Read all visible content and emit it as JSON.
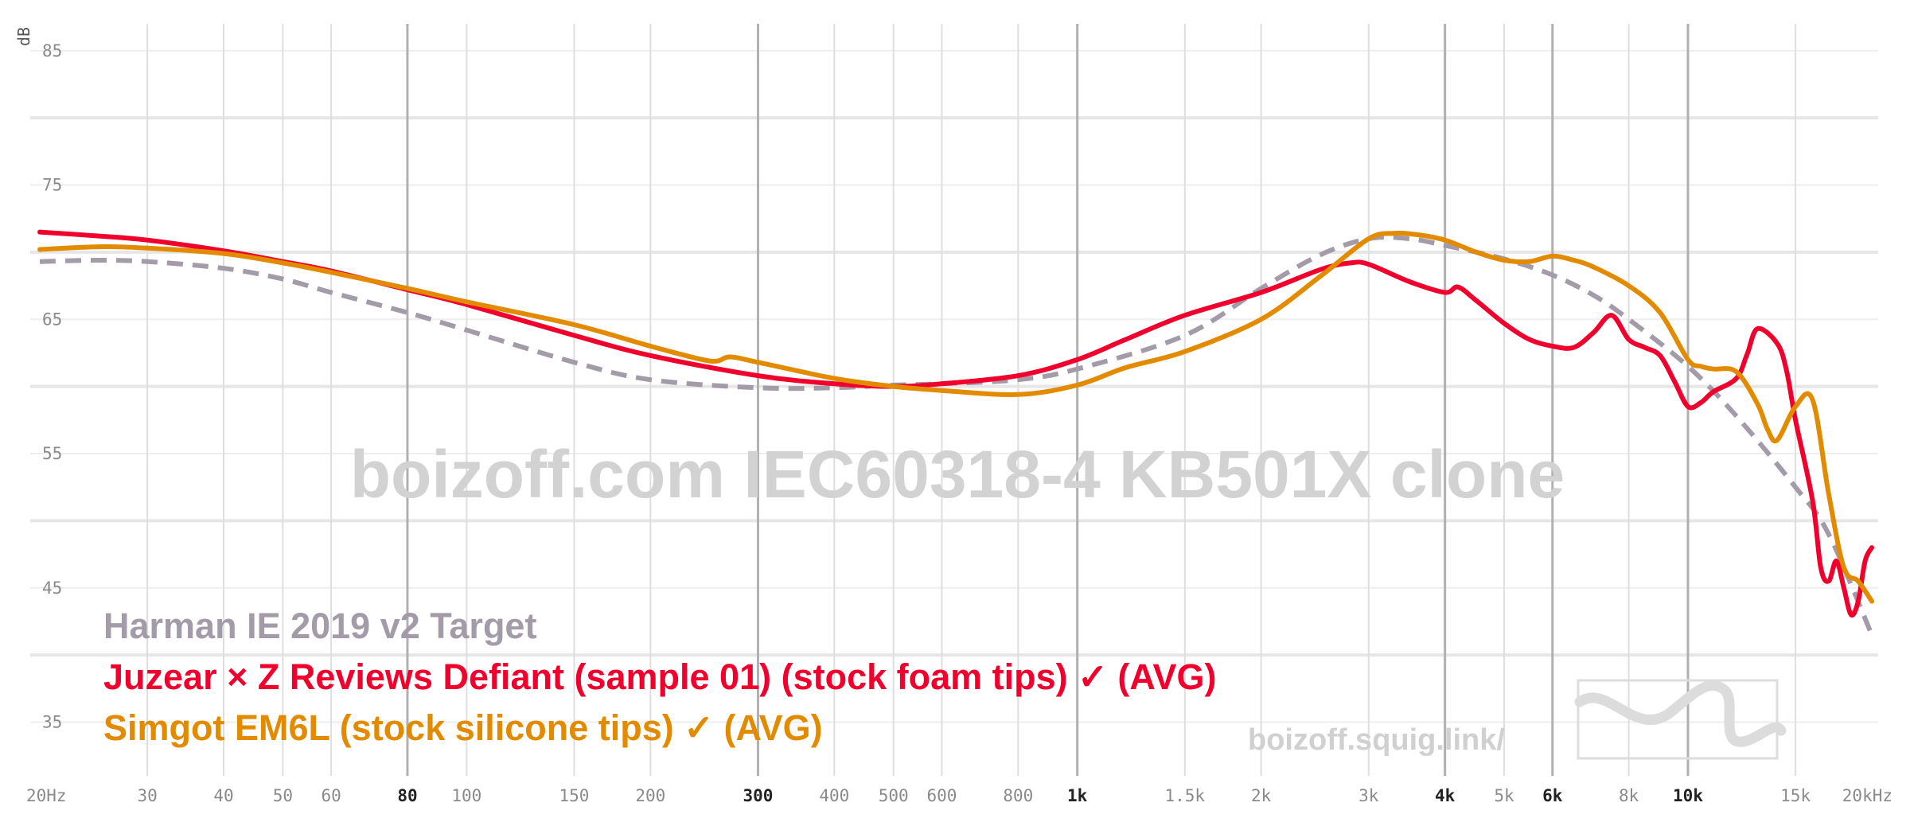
{
  "chart_data": {
    "type": "line",
    "xscale": "log",
    "xlim": [
      20,
      20000
    ],
    "ylim": [
      31,
      87
    ],
    "ylabel": "dB",
    "y_ticks": [
      35,
      45,
      55,
      65,
      75,
      85
    ],
    "x_ticks": [
      {
        "v": 20,
        "label": "20Hz",
        "major": false
      },
      {
        "v": 30,
        "label": "30",
        "major": false
      },
      {
        "v": 40,
        "label": "40",
        "major": false
      },
      {
        "v": 50,
        "label": "50",
        "major": false
      },
      {
        "v": 60,
        "label": "60",
        "major": false
      },
      {
        "v": 80,
        "label": "80",
        "major": true
      },
      {
        "v": 100,
        "label": "100",
        "major": false
      },
      {
        "v": 150,
        "label": "150",
        "major": false
      },
      {
        "v": 200,
        "label": "200",
        "major": false
      },
      {
        "v": 300,
        "label": "300",
        "major": true
      },
      {
        "v": 400,
        "label": "400",
        "major": false
      },
      {
        "v": 500,
        "label": "500",
        "major": false
      },
      {
        "v": 600,
        "label": "600",
        "major": false
      },
      {
        "v": 800,
        "label": "800",
        "major": false
      },
      {
        "v": 1000,
        "label": "1k",
        "major": true
      },
      {
        "v": 1500,
        "label": "1.5k",
        "major": false
      },
      {
        "v": 2000,
        "label": "2k",
        "major": false
      },
      {
        "v": 3000,
        "label": "3k",
        "major": false
      },
      {
        "v": 4000,
        "label": "4k",
        "major": true
      },
      {
        "v": 5000,
        "label": "5k",
        "major": false
      },
      {
        "v": 6000,
        "label": "6k",
        "major": true
      },
      {
        "v": 8000,
        "label": "8k",
        "major": false
      },
      {
        "v": 10000,
        "label": "10k",
        "major": true
      },
      {
        "v": 15000,
        "label": "15k",
        "major": false
      },
      {
        "v": 20000,
        "label": "20kHz",
        "major": false
      }
    ],
    "watermark": "boizoff.com IEC60318-4 KB501X clone",
    "credit": "boizoff.squig.link/",
    "legend": [
      {
        "label": "Harman IE 2019 v2 Target",
        "color": "#a39ba8"
      },
      {
        "label": "Juzear × Z Reviews Defiant (sample 01) (stock foam tips) ✓ (AVG)",
        "color": "#f0002c"
      },
      {
        "label": "Simgot EM6L (stock silicone tips) ✓ (AVG)",
        "color": "#e38b00"
      }
    ],
    "series": [
      {
        "name": "Harman IE 2019 v2 Target",
        "color": "#a39ba8",
        "dashed": true,
        "x": [
          20,
          25,
          30,
          40,
          50,
          60,
          80,
          100,
          150,
          200,
          300,
          400,
          500,
          600,
          800,
          1000,
          1500,
          2000,
          2500,
          3000,
          3500,
          4000,
          5000,
          6000,
          7000,
          8000,
          10000,
          12000,
          15000,
          17000,
          20000
        ],
        "y": [
          69.3,
          69.4,
          69.3,
          68.8,
          68.0,
          67.0,
          65.5,
          64.2,
          61.8,
          60.5,
          59.9,
          59.9,
          60.1,
          60.2,
          60.5,
          61.3,
          63.8,
          67.3,
          69.8,
          71.0,
          71.0,
          70.5,
          69.5,
          68.3,
          66.8,
          65.0,
          61.5,
          57.8,
          52.5,
          49.0,
          41.5
        ]
      },
      {
        "name": "Juzear × Z Reviews Defiant (sample 01) (stock foam tips) ✓ (AVG)",
        "color": "#f0002c",
        "dashed": false,
        "x": [
          20,
          25,
          30,
          40,
          50,
          60,
          80,
          100,
          150,
          200,
          300,
          400,
          500,
          600,
          800,
          1000,
          1200,
          1500,
          2000,
          2500,
          2800,
          3000,
          3500,
          4000,
          4200,
          4500,
          5000,
          5500,
          6000,
          6500,
          7000,
          7500,
          8000,
          8500,
          9000,
          9500,
          10000,
          10500,
          11000,
          12000,
          12500,
          13000,
          14000,
          14500,
          15000,
          16000,
          16500,
          17000,
          17500,
          18000,
          18500,
          19000,
          19500,
          20000
        ],
        "y": [
          71.5,
          71.2,
          70.9,
          70.1,
          69.3,
          68.6,
          67.2,
          66.1,
          63.8,
          62.3,
          60.8,
          60.2,
          60.0,
          60.2,
          60.8,
          62.0,
          63.5,
          65.3,
          67.0,
          68.7,
          69.2,
          69.1,
          67.8,
          67.0,
          67.4,
          66.4,
          64.7,
          63.5,
          63.0,
          62.9,
          64.0,
          65.3,
          63.5,
          62.9,
          62.3,
          60.4,
          58.5,
          58.8,
          59.6,
          60.6,
          62.4,
          64.3,
          63.2,
          61.2,
          57.5,
          51.5,
          46.5,
          45.5,
          47.0,
          45.0,
          43.0,
          44.0,
          47.0,
          48.0
        ]
      },
      {
        "name": "Simgot EM6L (stock silicone tips) ✓ (AVG)",
        "color": "#e38b00",
        "dashed": false,
        "x": [
          20,
          25,
          30,
          40,
          50,
          60,
          80,
          100,
          150,
          200,
          250,
          270,
          300,
          400,
          500,
          600,
          800,
          1000,
          1200,
          1500,
          2000,
          2500,
          3000,
          3300,
          3600,
          4000,
          4500,
          5000,
          5500,
          6000,
          6500,
          7000,
          8000,
          9000,
          10000,
          10500,
          11000,
          12000,
          13000,
          13500,
          14000,
          15000,
          16000,
          17000,
          18000,
          19000,
          20000
        ],
        "y": [
          70.2,
          70.4,
          70.3,
          69.9,
          69.2,
          68.5,
          67.3,
          66.3,
          64.6,
          63.0,
          61.9,
          62.2,
          61.8,
          60.6,
          60.0,
          59.7,
          59.4,
          60.1,
          61.4,
          62.6,
          65.0,
          68.2,
          71.0,
          71.4,
          71.3,
          70.9,
          70.0,
          69.4,
          69.3,
          69.7,
          69.4,
          68.9,
          67.5,
          65.5,
          62.0,
          61.5,
          61.3,
          61.1,
          58.7,
          56.8,
          56.0,
          58.5,
          59.0,
          52.0,
          46.5,
          45.5,
          44.0
        ]
      }
    ]
  }
}
